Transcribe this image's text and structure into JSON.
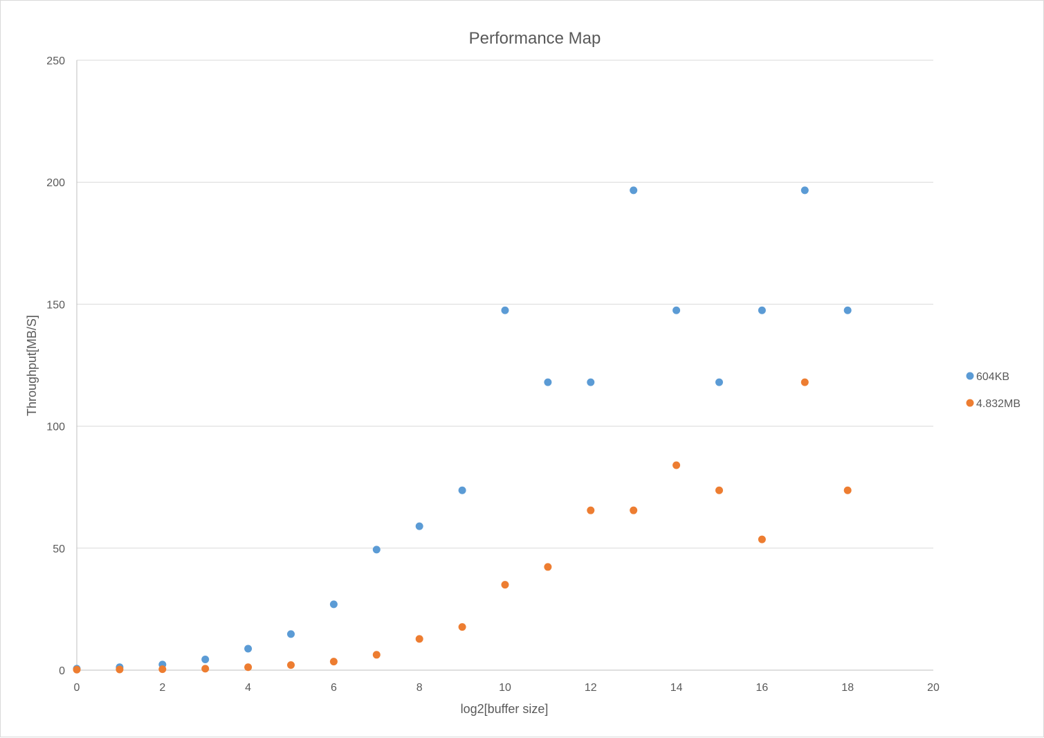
{
  "chart_data": {
    "type": "scatter",
    "title": "Performance Map",
    "xlabel": "log2[buffer size]",
    "ylabel": "Throughput[MB/S]",
    "xlim": [
      0,
      20
    ],
    "ylim": [
      0,
      250
    ],
    "xticks": [
      0,
      2,
      4,
      6,
      8,
      10,
      12,
      14,
      16,
      18,
      20
    ],
    "yticks": [
      0,
      50,
      100,
      150,
      200,
      250
    ],
    "grid": "horizontal",
    "legend_position": "right",
    "series": [
      {
        "name": "604KB",
        "color": "#5B9BD5",
        "points": [
          [
            0,
            0.6
          ],
          [
            1,
            1.2
          ],
          [
            2,
            2.3
          ],
          [
            3,
            4.4
          ],
          [
            4,
            8.8
          ],
          [
            5,
            14.8
          ],
          [
            6,
            27
          ],
          [
            7,
            49.4
          ],
          [
            8,
            59
          ],
          [
            9,
            73.7
          ],
          [
            10,
            147.5
          ],
          [
            11,
            118
          ],
          [
            12,
            118
          ],
          [
            13,
            196.7
          ],
          [
            14,
            147.5
          ],
          [
            15,
            118
          ],
          [
            16,
            147.5
          ],
          [
            17,
            196.7
          ],
          [
            18,
            147.5
          ]
        ]
      },
      {
        "name": "4.832MB",
        "color": "#ED7D31",
        "points": [
          [
            0,
            0.2
          ],
          [
            1,
            0.3
          ],
          [
            2,
            0.4
          ],
          [
            3,
            0.6
          ],
          [
            4,
            1.2
          ],
          [
            5,
            2.1
          ],
          [
            6,
            3.5
          ],
          [
            7,
            6.3
          ],
          [
            8,
            12.8
          ],
          [
            9,
            17.7
          ],
          [
            10,
            35
          ],
          [
            11,
            42.3
          ],
          [
            12,
            65.5
          ],
          [
            13,
            65.5
          ],
          [
            14,
            84
          ],
          [
            15,
            73.7
          ],
          [
            16,
            53.6
          ],
          [
            17,
            118
          ],
          [
            18,
            73.7
          ]
        ]
      }
    ]
  }
}
